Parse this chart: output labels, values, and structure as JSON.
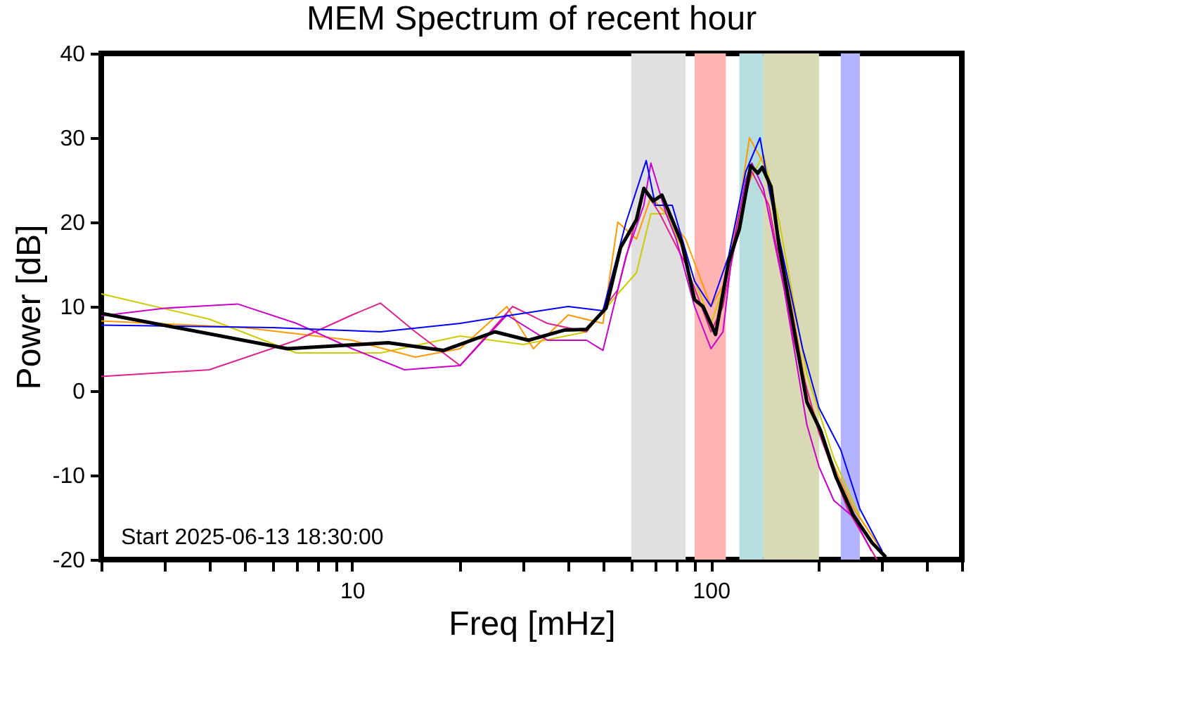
{
  "chart_data": {
    "type": "line",
    "title": "MEM Spectrum of recent hour",
    "xlabel": "Freq [mHz]",
    "ylabel": "Power [dB]",
    "annotations": [
      "Start 2025-06-13 18:30:00"
    ],
    "log": "x",
    "grid": false,
    "legend": false,
    "marker": "none",
    "line_style": "solid",
    "xlim": [
      2,
      500
    ],
    "ylim": [
      -20,
      40
    ],
    "yticks": [
      -20,
      -10,
      0,
      10,
      20,
      30,
      40
    ],
    "xticks": [
      {
        "value": 2,
        "label": null
      },
      {
        "value": 3,
        "label": null
      },
      {
        "value": 4,
        "label": null
      },
      {
        "value": 5,
        "label": null
      },
      {
        "value": 6,
        "label": null
      },
      {
        "value": 7,
        "label": null
      },
      {
        "value": 8,
        "label": null
      },
      {
        "value": 9,
        "label": null
      },
      10,
      {
        "value": 20,
        "label": null
      },
      {
        "value": 30,
        "label": null
      },
      {
        "value": 40,
        "label": null
      },
      {
        "value": 50,
        "label": null
      },
      {
        "value": 60,
        "label": null
      },
      {
        "value": 70,
        "label": null
      },
      {
        "value": 80,
        "label": null
      },
      {
        "value": 90,
        "label": null
      },
      100,
      {
        "value": 200,
        "label": null
      },
      {
        "value": 300,
        "label": null
      },
      {
        "value": 400,
        "label": null
      },
      {
        "value": 500,
        "label": null
      }
    ],
    "bands": [
      {
        "axis": "x",
        "from": 60,
        "to": 85,
        "color": "#e0e0e0"
      },
      {
        "axis": "x",
        "from": 90,
        "to": 110,
        "color": "#ffb3b3"
      },
      {
        "axis": "x",
        "from": 120,
        "to": 140,
        "color": "#b6dedf"
      },
      {
        "axis": "x",
        "from": 140,
        "to": 200,
        "color": "#d9d9b5"
      },
      {
        "axis": "x",
        "from": 230,
        "to": 260,
        "color": "#b3b3ff"
      }
    ],
    "series": [
      {
        "color": "#cccc00",
        "x": [
          2,
          4,
          7,
          12,
          20,
          30,
          45,
          55,
          62,
          68,
          75,
          85,
          100,
          112,
          125,
          140,
          155,
          185,
          220,
          260,
          300
        ],
        "values": [
          11.5,
          8.5,
          4.5,
          4.5,
          6.5,
          5.5,
          7,
          11.5,
          14,
          21,
          21,
          16,
          8,
          14,
          24,
          28,
          20,
          2,
          -8,
          -15,
          -19
        ]
      },
      {
        "color": "#ff9900",
        "x": [
          2,
          5,
          10,
          15,
          20,
          27,
          32,
          40,
          50,
          55,
          62,
          68,
          75,
          85,
          100,
          110,
          120,
          128,
          140,
          160,
          185,
          210,
          250,
          300
        ],
        "values": [
          8.3,
          7.5,
          6,
          4,
          5,
          10,
          5,
          9,
          8,
          20,
          18,
          23,
          21,
          18,
          10,
          13,
          22,
          30,
          27,
          15,
          0,
          -7,
          -14,
          -19
        ]
      },
      {
        "color": "#e0208f",
        "x": [
          2,
          4,
          7,
          10,
          12,
          15,
          20,
          28,
          35,
          45,
          55,
          65,
          72,
          85,
          100,
          108,
          120,
          130,
          145,
          170,
          200,
          240,
          290
        ],
        "values": [
          1.7,
          2.5,
          6,
          9,
          10.4,
          7,
          3,
          10,
          8,
          7,
          12,
          24,
          21,
          15,
          7,
          10,
          20,
          26,
          22,
          6,
          -5,
          -14,
          -20
        ]
      },
      {
        "color": "#cc00cc",
        "x": [
          2,
          3,
          4.8,
          7,
          10,
          14,
          20,
          27,
          35,
          45,
          50,
          58,
          65,
          68,
          75,
          80,
          90,
          100,
          108,
          115,
          125,
          130,
          140,
          160,
          185,
          200,
          220,
          250,
          280
        ],
        "values": [
          8.9,
          9.8,
          10.3,
          8,
          5,
          2.5,
          3,
          9,
          6,
          6,
          4.8,
          16,
          22,
          27,
          21,
          18,
          10,
          5,
          7,
          17,
          25,
          27,
          24,
          12,
          -4,
          -9,
          -13,
          -15,
          -19
        ]
      },
      {
        "color": "#0000ff",
        "x": [
          2,
          6,
          12,
          20,
          28,
          40,
          50,
          58,
          66,
          70,
          78,
          90,
          100,
          112,
          125,
          137,
          145,
          155,
          180,
          200,
          230,
          260,
          300
        ],
        "values": [
          7.8,
          7.5,
          7,
          8,
          9,
          10,
          9.5,
          20,
          27.3,
          22,
          22,
          13,
          10,
          16,
          26,
          30,
          24,
          18,
          5,
          -2,
          -7,
          -14,
          -19
        ]
      },
      {
        "color": "#000000",
        "x": [
          2,
          6.6,
          12.6,
          18,
          25,
          31,
          39,
          45,
          51,
          56,
          62,
          65,
          69,
          73,
          83,
          90,
          95,
          103,
          112,
          120,
          129,
          135,
          139,
          147,
          155,
          168,
          185,
          202,
          223,
          249,
          281,
          307
        ],
        "values": [
          9.2,
          5,
          5.7,
          4.8,
          7,
          6,
          7.2,
          7.3,
          9.8,
          17,
          20.3,
          24,
          22.5,
          23.2,
          17.5,
          10.8,
          10,
          6.7,
          15.3,
          19.2,
          26.7,
          25.8,
          26.5,
          24.2,
          17,
          8.7,
          -1.3,
          -4.7,
          -10.2,
          -14.7,
          -18,
          -19.7
        ]
      }
    ]
  }
}
